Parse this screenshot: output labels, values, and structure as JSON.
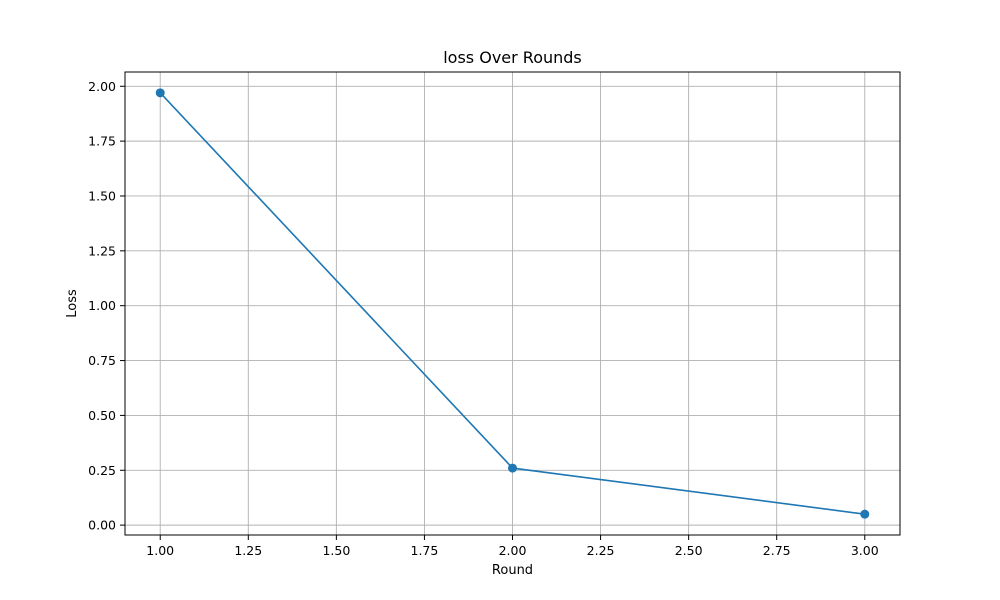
{
  "chart_data": {
    "type": "line",
    "title": "loss Over Rounds",
    "xlabel": "Round",
    "ylabel": "Loss",
    "x": [
      1.0,
      2.0,
      3.0
    ],
    "series": [
      {
        "values": [
          1.97,
          0.26,
          0.05
        ],
        "color": "#1f77b4",
        "marker": "circle"
      }
    ],
    "xlim": [
      0.9,
      3.1
    ],
    "ylim": [
      -0.045,
      2.065
    ],
    "xticks": [
      1.0,
      1.25,
      1.5,
      1.75,
      2.0,
      2.25,
      2.5,
      2.75,
      3.0
    ],
    "xtick_labels": [
      "1.00",
      "1.25",
      "1.50",
      "1.75",
      "2.00",
      "2.25",
      "2.50",
      "2.75",
      "3.00"
    ],
    "yticks": [
      0.0,
      0.25,
      0.5,
      0.75,
      1.0,
      1.25,
      1.5,
      1.75,
      2.0
    ],
    "ytick_labels": [
      "0.00",
      "0.25",
      "0.50",
      "0.75",
      "1.00",
      "1.25",
      "1.50",
      "1.75",
      "2.00"
    ],
    "grid": true,
    "legend": false,
    "colors": {
      "grid": "#b0b0b0",
      "axes": "#000000",
      "background": "#ffffff"
    }
  }
}
